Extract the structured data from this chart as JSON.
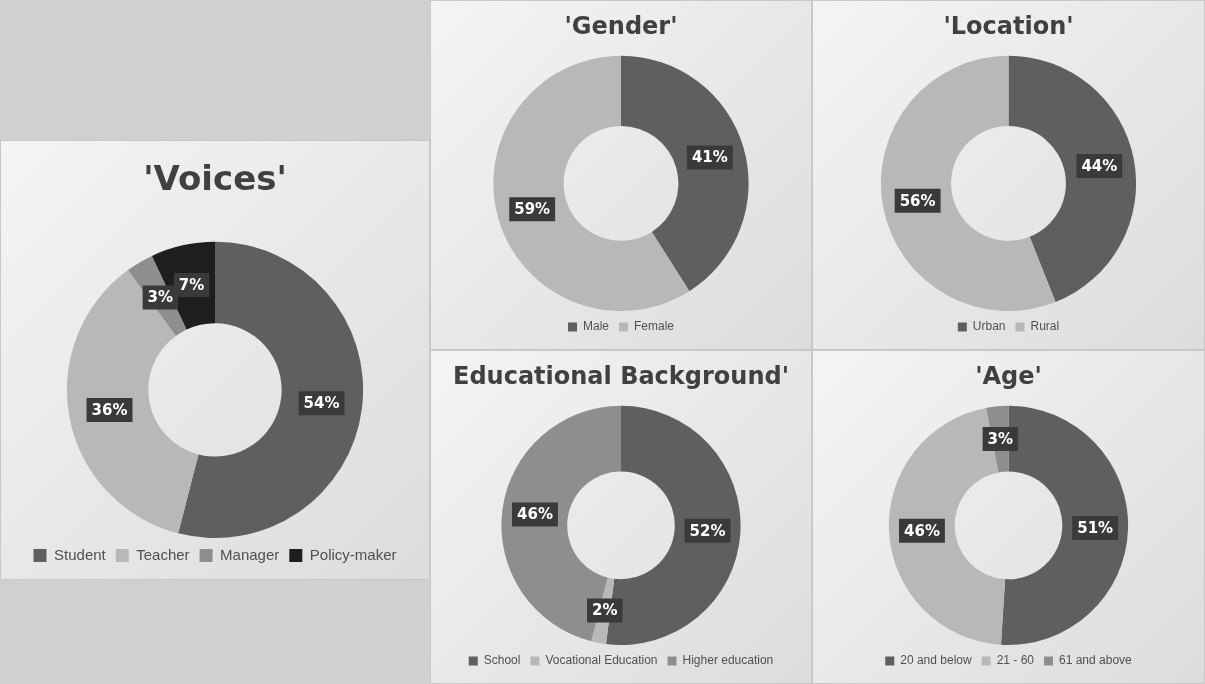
{
  "chart_data": [
    {
      "type": "donut",
      "title": "'Voices'",
      "categories": [
        "Student",
        "Teacher",
        "Manager",
        "Policy-maker"
      ],
      "values": [
        54,
        36,
        3,
        7
      ],
      "value_labels": [
        "54%",
        "36%",
        "3%",
        "7%"
      ],
      "colors": [
        "#5f5f5f",
        "#b8b8b8",
        "#8e8e8e",
        "#1e1e1e"
      ],
      "legend": "bottom"
    },
    {
      "type": "donut",
      "title": "'Gender'",
      "categories": [
        "Male",
        "Female"
      ],
      "values": [
        41,
        59
      ],
      "value_labels": [
        "41%",
        "59%"
      ],
      "colors": [
        "#5f5f5f",
        "#b8b8b8"
      ],
      "legend": "bottom"
    },
    {
      "type": "donut",
      "title": "'Location'",
      "categories": [
        "Urban",
        "Rural"
      ],
      "values": [
        44,
        56
      ],
      "value_labels": [
        "44%",
        "56%"
      ],
      "colors": [
        "#5f5f5f",
        "#b8b8b8"
      ],
      "legend": "bottom"
    },
    {
      "type": "donut",
      "title": "Educational Background'",
      "categories": [
        "School",
        "Vocational Education",
        "Higher education"
      ],
      "values": [
        52,
        2,
        46
      ],
      "value_labels": [
        "52%",
        "2%",
        "46%"
      ],
      "colors": [
        "#5f5f5f",
        "#b8b8b8",
        "#8e8e8e"
      ],
      "legend": "bottom"
    },
    {
      "type": "donut",
      "title": "'Age'",
      "categories": [
        "20 and below",
        "21 - 60",
        "61 and above"
      ],
      "values": [
        51,
        46,
        3
      ],
      "value_labels": [
        "51%",
        "46%",
        "3%"
      ],
      "colors": [
        "#5f5f5f",
        "#b8b8b8",
        "#8e8e8e"
      ],
      "legend": "bottom"
    }
  ]
}
